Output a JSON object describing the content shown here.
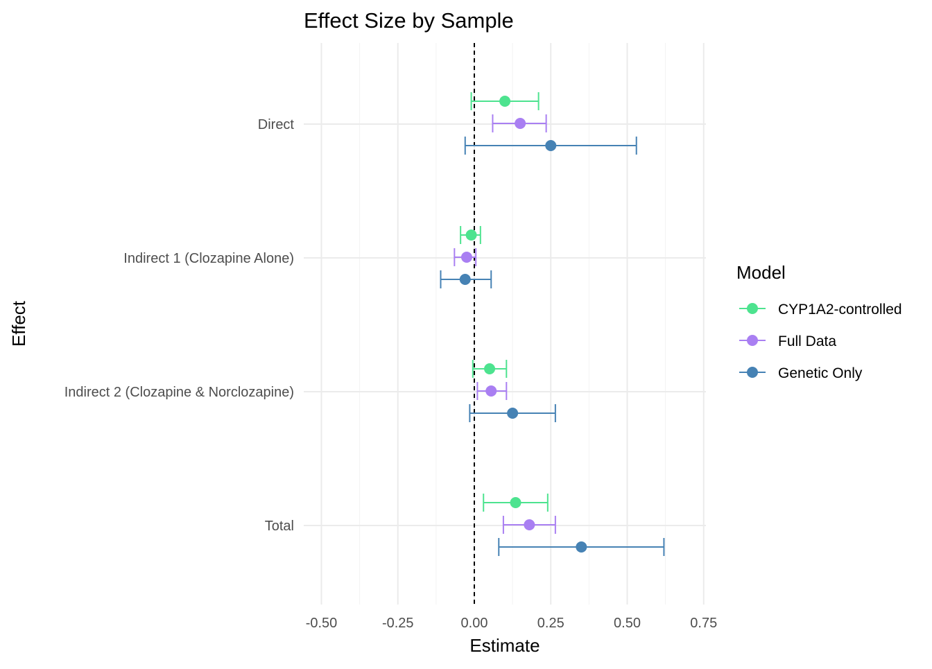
{
  "chart_data": {
    "type": "forest",
    "title": "Effect Size by Sample",
    "xlabel": "Estimate",
    "ylabel": "Effect",
    "xlim": [
      -0.56,
      0.76
    ],
    "x_ticks": [
      -0.5,
      -0.25,
      0.0,
      0.25,
      0.5,
      0.75
    ],
    "x_tick_labels": [
      "-0.50",
      "-0.25",
      "0.00",
      "0.25",
      "0.50",
      "0.75"
    ],
    "reference_line": 0,
    "grid": true,
    "legend": {
      "title": "Model",
      "position": "right"
    },
    "categories": [
      "Direct",
      "Indirect 1 (Clozapine Alone)",
      "Indirect 2 (Clozapine & Norclozapine)",
      "Total"
    ],
    "series": [
      {
        "name": "CYP1A2-controlled",
        "color": "#4de38f",
        "points": [
          {
            "estimate": 0.1,
            "lower": -0.01,
            "upper": 0.21
          },
          {
            "estimate": -0.01,
            "lower": -0.045,
            "upper": 0.02
          },
          {
            "estimate": 0.05,
            "lower": -0.005,
            "upper": 0.105
          },
          {
            "estimate": 0.135,
            "lower": 0.03,
            "upper": 0.24
          }
        ]
      },
      {
        "name": "Full Data",
        "color": "#a97ff2",
        "points": [
          {
            "estimate": 0.15,
            "lower": 0.06,
            "upper": 0.235
          },
          {
            "estimate": -0.025,
            "lower": -0.065,
            "upper": 0.005
          },
          {
            "estimate": 0.055,
            "lower": 0.01,
            "upper": 0.105
          },
          {
            "estimate": 0.18,
            "lower": 0.095,
            "upper": 0.265
          }
        ]
      },
      {
        "name": "Genetic Only",
        "color": "#4682b4",
        "points": [
          {
            "estimate": 0.25,
            "lower": -0.03,
            "upper": 0.53
          },
          {
            "estimate": -0.03,
            "lower": -0.11,
            "upper": 0.055
          },
          {
            "estimate": 0.125,
            "lower": -0.015,
            "upper": 0.265
          },
          {
            "estimate": 0.35,
            "lower": 0.08,
            "upper": 0.62
          }
        ]
      }
    ]
  }
}
